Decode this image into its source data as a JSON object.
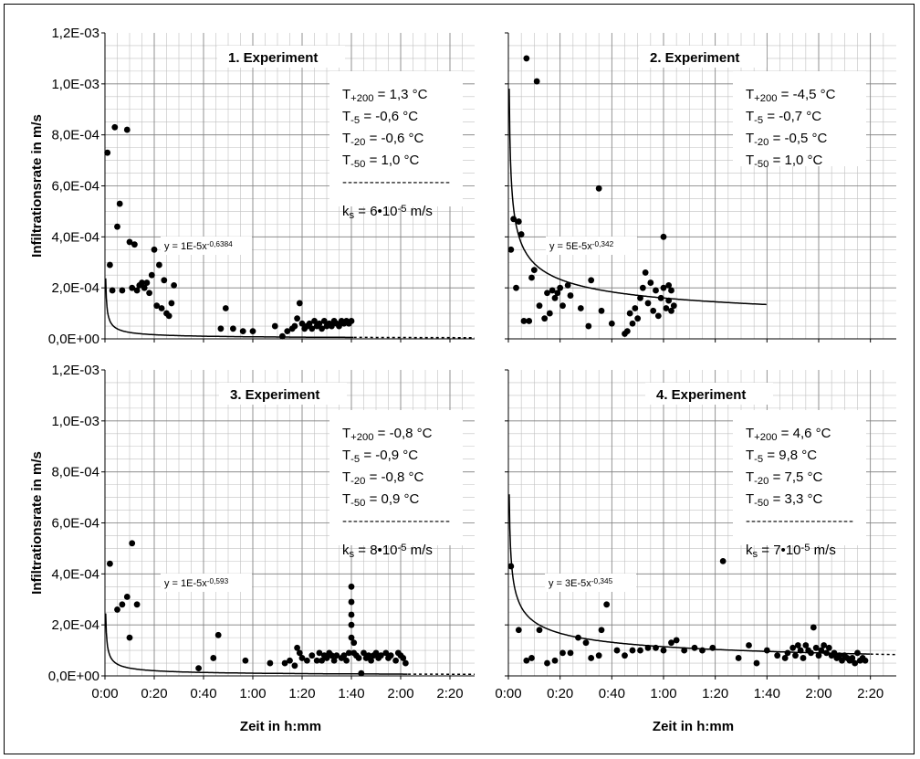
{
  "colors": {
    "marker": "#000000",
    "grid": "#c0c0c0",
    "background": "#ffffff"
  },
  "shared_axes": {
    "ylabel": "Infiltrationsrate in m/s",
    "xlabel": "Zeit in h:mm",
    "y_ticks": [
      "0,0E+00",
      "2,0E-04",
      "4,0E-04",
      "6,0E-04",
      "8,0E-04",
      "1,0E-03",
      "1,2E-03"
    ],
    "x_ticks": [
      "0:00",
      "0:20",
      "0:40",
      "1:00",
      "1:20",
      "1:40",
      "2:00",
      "2:20"
    ]
  },
  "chart_data": [
    {
      "type": "scatter",
      "title": "1. Experiment",
      "xlabel": "",
      "ylabel": "Infiltrationsrate in m/s",
      "xlim": [
        0,
        150
      ],
      "ylim": [
        0,
        0.0012
      ],
      "grid": true,
      "equation_label": "y = 1E-5x",
      "equation_exponent": "-0,6384",
      "trend": {
        "a": 0.00011,
        "b": -0.6384,
        "solid_end": 101,
        "dotted_end": 150
      },
      "info": [
        {
          "sym": "T",
          "sub": "+200",
          "val": "=  1,3 °C"
        },
        {
          "sym": "T",
          "sub": "-5",
          "val": "= -0,6 °C"
        },
        {
          "sym": "T",
          "sub": "-20",
          "val": "= -0,6 °C"
        },
        {
          "sym": "T",
          "sub": "-50",
          "val": "=  1,0 °C"
        }
      ],
      "separator": "--------------------",
      "ks": {
        "sym": "k",
        "sub": "s",
        "val": "= 6•10",
        "exp": "-5",
        "unit": " m/s"
      },
      "points": [
        [
          1,
          0.00073
        ],
        [
          2,
          0.00029
        ],
        [
          3,
          0.00019
        ],
        [
          4,
          0.00083
        ],
        [
          5,
          0.00044
        ],
        [
          6,
          0.00053
        ],
        [
          7,
          0.00019
        ],
        [
          9,
          0.00082
        ],
        [
          10,
          0.00038
        ],
        [
          12,
          0.00037
        ],
        [
          11,
          0.0002
        ],
        [
          13,
          0.00019
        ],
        [
          14,
          0.00021
        ],
        [
          15,
          0.00022
        ],
        [
          16,
          0.0002
        ],
        [
          17,
          0.00022
        ],
        [
          18,
          0.00018
        ],
        [
          19,
          0.00025
        ],
        [
          20,
          0.00035
        ],
        [
          21,
          0.00013
        ],
        [
          22,
          0.00029
        ],
        [
          23,
          0.00012
        ],
        [
          24,
          0.00023
        ],
        [
          25,
          0.0001
        ],
        [
          26,
          9e-05
        ],
        [
          27,
          0.00014
        ],
        [
          28,
          0.00021
        ],
        [
          47,
          4e-05
        ],
        [
          49,
          0.00012
        ],
        [
          52,
          4e-05
        ],
        [
          56,
          3e-05
        ],
        [
          60,
          3e-05
        ],
        [
          69,
          5e-05
        ],
        [
          72,
          1e-05
        ],
        [
          74,
          3e-05
        ],
        [
          76,
          4e-05
        ],
        [
          77,
          5e-05
        ],
        [
          78,
          8e-05
        ],
        [
          79,
          0.00014
        ],
        [
          80,
          6e-05
        ],
        [
          81,
          4e-05
        ],
        [
          82,
          5e-05
        ],
        [
          83,
          6e-05
        ],
        [
          84,
          4e-05
        ],
        [
          85,
          7e-05
        ],
        [
          86,
          5e-05
        ],
        [
          87,
          6e-05
        ],
        [
          88,
          4e-05
        ],
        [
          89,
          7e-05
        ],
        [
          90,
          5e-05
        ],
        [
          91,
          6e-05
        ],
        [
          92,
          5e-05
        ],
        [
          93,
          7e-05
        ],
        [
          94,
          6e-05
        ],
        [
          95,
          5e-05
        ],
        [
          96,
          7e-05
        ],
        [
          97,
          6e-05
        ],
        [
          98,
          7e-05
        ],
        [
          99,
          6e-05
        ],
        [
          100,
          7e-05
        ]
      ]
    },
    {
      "type": "scatter",
      "title": "2. Experiment",
      "xlabel": "",
      "ylabel": "",
      "xlim": [
        0,
        150
      ],
      "ylim": [
        0,
        0.0012
      ],
      "grid": true,
      "equation_label": "y = 5E-5x",
      "equation_exponent": "-0,342",
      "trend": {
        "a": 0.00065,
        "b": -0.342,
        "solid_end": 100,
        "dotted_end": 100
      },
      "info": [
        {
          "sym": "T",
          "sub": "+200",
          "val": "= -4,5 °C"
        },
        {
          "sym": "T",
          "sub": "-5",
          "val": "= -0,7 °C"
        },
        {
          "sym": "T",
          "sub": "-20",
          "val": "= -0,5 °C"
        },
        {
          "sym": "T",
          "sub": "-50",
          "val": "=  1,0 °C"
        }
      ],
      "separator": "",
      "ks": null,
      "points": [
        [
          1,
          0.00035
        ],
        [
          2,
          0.00047
        ],
        [
          3,
          0.0002
        ],
        [
          4,
          0.00046
        ],
        [
          5,
          0.00041
        ],
        [
          6,
          7e-05
        ],
        [
          7,
          0.0011
        ],
        [
          8,
          7e-05
        ],
        [
          9,
          0.00024
        ],
        [
          10,
          0.00027
        ],
        [
          11,
          0.00101
        ],
        [
          12,
          0.00013
        ],
        [
          14,
          8e-05
        ],
        [
          15,
          0.00018
        ],
        [
          16,
          0.0001
        ],
        [
          17,
          0.00019
        ],
        [
          18,
          0.00016
        ],
        [
          19,
          0.00018
        ],
        [
          20,
          0.0002
        ],
        [
          21,
          0.00013
        ],
        [
          23,
          0.00021
        ],
        [
          24,
          0.00017
        ],
        [
          28,
          0.00012
        ],
        [
          31,
          5e-05
        ],
        [
          32,
          0.00023
        ],
        [
          35,
          0.00059
        ],
        [
          36,
          0.00011
        ],
        [
          40,
          6e-05
        ],
        [
          45,
          2e-05
        ],
        [
          46,
          3e-05
        ],
        [
          47,
          0.0001
        ],
        [
          48,
          6e-05
        ],
        [
          49,
          0.00012
        ],
        [
          50,
          8e-05
        ],
        [
          51,
          0.00016
        ],
        [
          52,
          0.0002
        ],
        [
          53,
          0.00026
        ],
        [
          54,
          0.00014
        ],
        [
          55,
          0.00022
        ],
        [
          56,
          0.00011
        ],
        [
          57,
          0.00019
        ],
        [
          58,
          9e-05
        ],
        [
          59,
          0.00016
        ],
        [
          60,
          0.0002
        ],
        [
          61,
          0.00012
        ],
        [
          60,
          0.0004
        ],
        [
          62,
          0.00015
        ],
        [
          62,
          0.00021
        ],
        [
          63,
          0.00019
        ],
        [
          63,
          0.00011
        ],
        [
          64,
          0.00013
        ]
      ]
    },
    {
      "type": "scatter",
      "title": "3. Experiment",
      "xlabel": "Zeit in h:mm",
      "ylabel": "Infiltrationsrate in m/s",
      "xlim": [
        0,
        150
      ],
      "ylim": [
        0,
        0.0012
      ],
      "grid": true,
      "equation_label": "y = 1E-5x",
      "equation_exponent": "-0,593",
      "trend": {
        "a": 0.00012,
        "b": -0.593,
        "solid_end": 123,
        "dotted_end": 150
      },
      "info": [
        {
          "sym": "T",
          "sub": "+200",
          "val": "= -0,8 °C"
        },
        {
          "sym": "T",
          "sub": "-5",
          "val": "= -0,9 °C"
        },
        {
          "sym": "T",
          "sub": "-20",
          "val": "= -0,8 °C"
        },
        {
          "sym": "T",
          "sub": "-50",
          "val": "=  0,9 °C"
        }
      ],
      "separator": "--------------------",
      "ks": {
        "sym": "k",
        "sub": "s",
        "val": "= 8•10",
        "exp": "-5",
        "unit": " m/s"
      },
      "points": [
        [
          2,
          0.00044
        ],
        [
          5,
          0.00026
        ],
        [
          7,
          0.00028
        ],
        [
          9,
          0.00031
        ],
        [
          10,
          0.00015
        ],
        [
          11,
          0.00052
        ],
        [
          13,
          0.00028
        ],
        [
          38,
          3e-05
        ],
        [
          44,
          7e-05
        ],
        [
          46,
          0.00016
        ],
        [
          57,
          6e-05
        ],
        [
          67,
          5e-05
        ],
        [
          73,
          5e-05
        ],
        [
          75,
          6e-05
        ],
        [
          77,
          4e-05
        ],
        [
          78,
          0.00011
        ],
        [
          79,
          9e-05
        ],
        [
          80,
          7e-05
        ],
        [
          82,
          6e-05
        ],
        [
          84,
          8e-05
        ],
        [
          86,
          6e-05
        ],
        [
          87,
          9e-05
        ],
        [
          88,
          6e-05
        ],
        [
          89,
          8e-05
        ],
        [
          90,
          7e-05
        ],
        [
          91,
          9e-05
        ],
        [
          92,
          8e-05
        ],
        [
          93,
          6e-05
        ],
        [
          94,
          8e-05
        ],
        [
          96,
          7e-05
        ],
        [
          97,
          8e-05
        ],
        [
          98,
          6e-05
        ],
        [
          99,
          9e-05
        ],
        [
          100,
          0.0002
        ],
        [
          100,
          0.00035
        ],
        [
          100,
          0.00029
        ],
        [
          100,
          0.00024
        ],
        [
          100,
          0.00015
        ],
        [
          101,
          0.00013
        ],
        [
          101,
          9e-05
        ],
        [
          102,
          8e-05
        ],
        [
          103,
          7e-05
        ],
        [
          104,
          1e-05
        ],
        [
          105,
          9e-05
        ],
        [
          106,
          7e-05
        ],
        [
          107,
          8e-05
        ],
        [
          108,
          6e-05
        ],
        [
          109,
          8e-05
        ],
        [
          110,
          9e-05
        ],
        [
          111,
          7e-05
        ],
        [
          112,
          8e-05
        ],
        [
          114,
          9e-05
        ],
        [
          115,
          7e-05
        ],
        [
          116,
          8e-05
        ],
        [
          118,
          6e-05
        ],
        [
          119,
          9e-05
        ],
        [
          120,
          8e-05
        ],
        [
          121,
          7e-05
        ],
        [
          122,
          5e-05
        ]
      ]
    },
    {
      "type": "scatter",
      "title": "4. Experiment",
      "xlabel": "Zeit in h:mm",
      "ylabel": "",
      "xlim": [
        0,
        150
      ],
      "ylim": [
        0,
        0.0012
      ],
      "grid": true,
      "equation_label": "y = 3E-5x",
      "equation_exponent": "-0,345",
      "trend": {
        "a": 0.00047,
        "b": -0.345,
        "solid_end": 140,
        "dotted_end": 150
      },
      "info": [
        {
          "sym": "T",
          "sub": "+200",
          "val": "=  4,6 °C"
        },
        {
          "sym": "T",
          "sub": "-5",
          "val": "=  9,8 °C"
        },
        {
          "sym": "T",
          "sub": "-20",
          "val": "=  7,5 °C"
        },
        {
          "sym": "T",
          "sub": "-50",
          "val": "=  3,3 °C"
        }
      ],
      "separator": "--------------------",
      "ks": {
        "sym": "k",
        "sub": "s",
        "val": "= 7•10",
        "exp": "-5",
        "unit": " m/s"
      },
      "points": [
        [
          1,
          0.00043
        ],
        [
          4,
          0.00018
        ],
        [
          7,
          6e-05
        ],
        [
          9,
          7e-05
        ],
        [
          12,
          0.00018
        ],
        [
          15,
          5e-05
        ],
        [
          18,
          6e-05
        ],
        [
          21,
          9e-05
        ],
        [
          24,
          9e-05
        ],
        [
          27,
          0.00015
        ],
        [
          30,
          0.00013
        ],
        [
          32,
          7e-05
        ],
        [
          35,
          8e-05
        ],
        [
          36,
          0.00018
        ],
        [
          38,
          0.00028
        ],
        [
          42,
          0.0001
        ],
        [
          45,
          8e-05
        ],
        [
          48,
          0.0001
        ],
        [
          51,
          0.0001
        ],
        [
          54,
          0.00011
        ],
        [
          57,
          0.00011
        ],
        [
          60,
          0.0001
        ],
        [
          63,
          0.00013
        ],
        [
          65,
          0.00014
        ],
        [
          68,
          0.0001
        ],
        [
          72,
          0.00011
        ],
        [
          75,
          0.0001
        ],
        [
          79,
          0.00011
        ],
        [
          83,
          0.00045
        ],
        [
          89,
          7e-05
        ],
        [
          93,
          0.00012
        ],
        [
          96,
          5e-05
        ],
        [
          100,
          0.0001
        ],
        [
          104,
          8e-05
        ],
        [
          107,
          7e-05
        ],
        [
          108,
          9e-05
        ],
        [
          110,
          0.00011
        ],
        [
          111,
          8e-05
        ],
        [
          112,
          0.00012
        ],
        [
          113,
          0.0001
        ],
        [
          114,
          7e-05
        ],
        [
          115,
          0.00012
        ],
        [
          116,
          0.0001
        ],
        [
          117,
          9e-05
        ],
        [
          118,
          0.00019
        ],
        [
          119,
          0.00011
        ],
        [
          120,
          8e-05
        ],
        [
          121,
          0.0001
        ],
        [
          122,
          0.00012
        ],
        [
          123,
          9e-05
        ],
        [
          124,
          0.00011
        ],
        [
          125,
          8e-05
        ],
        [
          126,
          9e-05
        ],
        [
          127,
          7e-05
        ],
        [
          128,
          8e-05
        ],
        [
          129,
          6e-05
        ],
        [
          130,
          8e-05
        ],
        [
          131,
          7e-05
        ],
        [
          132,
          6e-05
        ],
        [
          133,
          7e-05
        ],
        [
          134,
          5e-05
        ],
        [
          135,
          9e-05
        ],
        [
          136,
          6e-05
        ],
        [
          137,
          7e-05
        ],
        [
          138,
          6e-05
        ]
      ]
    }
  ]
}
